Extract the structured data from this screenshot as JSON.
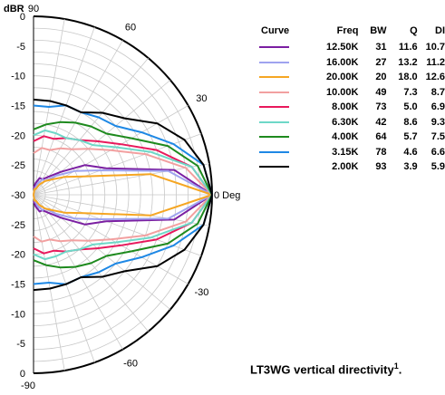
{
  "chart_data": {
    "type": "polar-half",
    "ylabel": "dBR",
    "rlim": [
      -30,
      0
    ],
    "radial_tick_labels": [
      "0",
      "-5",
      "-10",
      "-15",
      "-20",
      "-25",
      "-30",
      "-25",
      "-20",
      "-15",
      "-10",
      "-5",
      "0"
    ],
    "angle_labels": [
      "90",
      "60",
      "30",
      "0 Deg",
      "-30",
      "-60",
      "-90"
    ],
    "grid": true,
    "legend": {
      "headers": [
        "Curve",
        "Freq",
        "BW",
        "Q",
        "DI"
      ],
      "rows": [
        {
          "freq": "12.50K",
          "bw": "31",
          "q": "11.6",
          "di": "10.7",
          "color": "#7b1fa2"
        },
        {
          "freq": "16.00K",
          "bw": "27",
          "q": "13.2",
          "di": "11.2",
          "color": "#9fa3ef"
        },
        {
          "freq": "20.00K",
          "bw": "20",
          "q": "18.0",
          "di": "12.6",
          "color": "#f5a623"
        },
        {
          "freq": "10.00K",
          "bw": "49",
          "q": "7.3",
          "di": "8.7",
          "color": "#f2a0a0"
        },
        {
          "freq": "8.00K",
          "bw": "73",
          "q": "5.0",
          "di": "6.9",
          "color": "#e8195c"
        },
        {
          "freq": "6.30K",
          "bw": "42",
          "q": "8.6",
          "di": "9.3",
          "color": "#6ed8c8"
        },
        {
          "freq": "4.00K",
          "bw": "64",
          "q": "5.7",
          "di": "7.5",
          "color": "#1e8a1e"
        },
        {
          "freq": "3.15K",
          "bw": "78",
          "q": "4.6",
          "di": "6.6",
          "color": "#1e88e5"
        },
        {
          "freq": "2.00K",
          "bw": "93",
          "q": "3.9",
          "di": "5.9",
          "color": "#000000"
        }
      ]
    },
    "series": [
      {
        "name": "12.50K",
        "color": "#7b1fa2",
        "angles": [
          0,
          10,
          20,
          30,
          40,
          50,
          60,
          70,
          80,
          90
        ],
        "values": [
          0,
          -6,
          -17,
          -20,
          -24,
          -26,
          -27,
          -27,
          -28,
          -29
        ]
      },
      {
        "name": "16.00K",
        "color": "#9fa3ef",
        "angles": [
          0,
          10,
          20,
          30,
          40,
          50,
          60,
          70,
          80,
          90
        ],
        "values": [
          0,
          -7,
          -18,
          -22,
          -25,
          -27,
          -27,
          -28,
          -29,
          -30
        ]
      },
      {
        "name": "20.00K",
        "color": "#f5a623",
        "angles": [
          0,
          10,
          20,
          30,
          40,
          50,
          60,
          70,
          80,
          90
        ],
        "values": [
          0,
          -10,
          -21,
          -24,
          -26,
          -27,
          -28,
          -29,
          -29,
          -30
        ]
      },
      {
        "name": "10.00K",
        "color": "#f2a0a0",
        "angles": [
          0,
          10,
          20,
          30,
          40,
          50,
          60,
          70,
          80,
          90
        ],
        "values": [
          0,
          -4,
          -10,
          -15,
          -18,
          -20,
          -21,
          -22,
          -22,
          -23
        ]
      },
      {
        "name": "8.00K",
        "color": "#e8195c",
        "angles": [
          0,
          10,
          20,
          30,
          40,
          50,
          60,
          70,
          80,
          90
        ],
        "values": [
          0,
          -3,
          -8,
          -13,
          -16,
          -18,
          -19,
          -20,
          -20,
          -21
        ]
      },
      {
        "name": "6.30K",
        "color": "#6ed8c8",
        "angles": [
          0,
          10,
          20,
          30,
          40,
          50,
          60,
          70,
          80,
          90
        ],
        "values": [
          0,
          -3,
          -9,
          -14,
          -17,
          -18,
          -19,
          -19,
          -19,
          -20
        ]
      },
      {
        "name": "4.00K",
        "color": "#1e8a1e",
        "angles": [
          0,
          10,
          20,
          30,
          40,
          50,
          60,
          70,
          80,
          90
        ],
        "values": [
          0,
          -2,
          -6,
          -11,
          -14,
          -15,
          -16,
          -17,
          -18,
          -19
        ]
      },
      {
        "name": "3.15K",
        "color": "#1e88e5",
        "angles": [
          0,
          10,
          20,
          30,
          40,
          50,
          60,
          70,
          80,
          90
        ],
        "values": [
          0,
          -1,
          -5,
          -9,
          -12,
          -13,
          -14,
          -14,
          -15,
          -15
        ]
      },
      {
        "name": "2.00K",
        "color": "#000000",
        "angles": [
          0,
          10,
          20,
          30,
          40,
          50,
          60,
          70,
          80,
          90
        ],
        "values": [
          0,
          -1,
          -3,
          -6,
          -10,
          -12,
          -14,
          -14,
          -14,
          -14
        ]
      }
    ]
  },
  "caption": {
    "text": "LT3WG vertical directivity",
    "superscript": "1",
    "suffix": "."
  }
}
